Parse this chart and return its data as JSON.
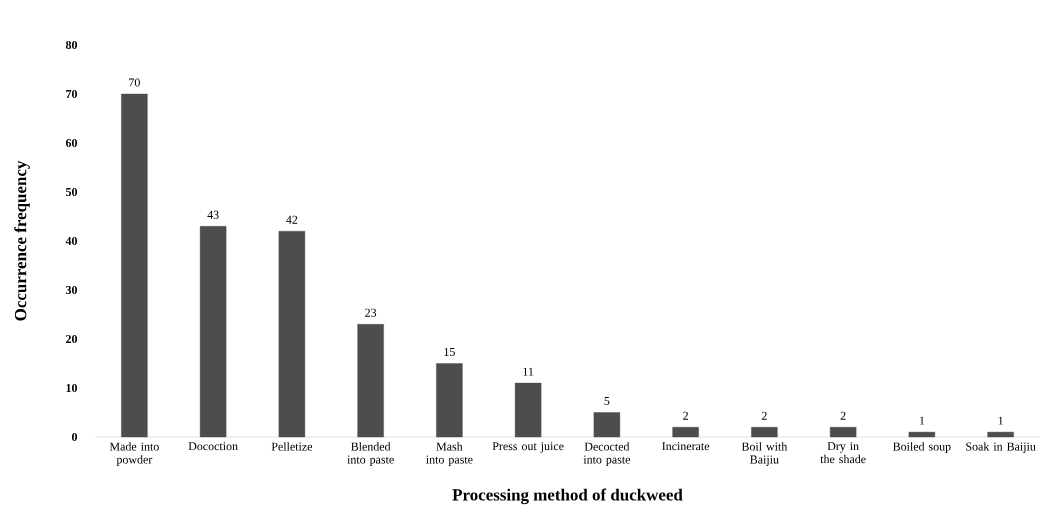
{
  "chart_data": {
    "type": "bar",
    "xlabel": "Processing method of duckweed",
    "ylabel": "Occurrence frequency",
    "categories": [
      "Made into powder",
      "Docoction",
      "Pelletize",
      "Blended into paste",
      "Mash into paste",
      "Press out juice",
      "Decocted into paste",
      "Incinerate",
      "Boil with Baijiu",
      "Dry in the shade",
      "Boiled soup",
      "Soak in Baijiu"
    ],
    "values": [
      70,
      43,
      42,
      23,
      15,
      11,
      5,
      2,
      2,
      2,
      1,
      1
    ],
    "color": "#4d4d4d",
    "ylim": [
      0,
      80
    ],
    "yticks": [
      0,
      10,
      20,
      30,
      40,
      50,
      60,
      70,
      80
    ],
    "data_labels": true
  }
}
